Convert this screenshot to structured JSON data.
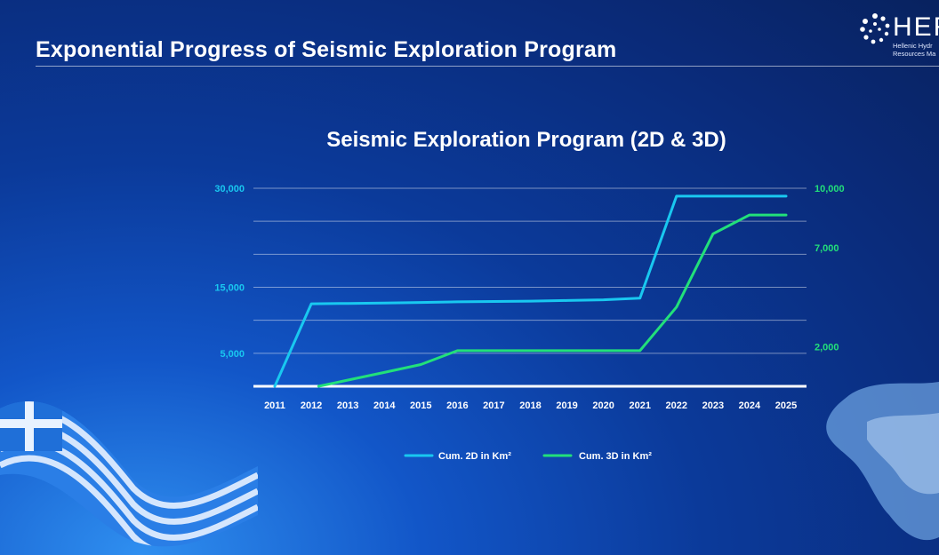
{
  "slide": {
    "title": "Exponential Progress of Seismic Exploration Program"
  },
  "logo": {
    "text": "HER",
    "subtitle_line1": "Hellenic Hydr",
    "subtitle_line2": "Resources Ma"
  },
  "chart_data": {
    "type": "line",
    "title": "Seismic Exploration Program (2D & 3D)",
    "x": [
      "2011",
      "2012",
      "2013",
      "2014",
      "2015",
      "2016",
      "2017",
      "2018",
      "2019",
      "2020",
      "2021",
      "2022",
      "2023",
      "2024",
      "2025"
    ],
    "left_axis": {
      "ticks": [
        5000,
        15000,
        30000
      ],
      "tick_labels": [
        "5,000",
        "15,000",
        "30,000"
      ],
      "ylim": [
        0,
        30000
      ],
      "color": "#19c8f0"
    },
    "right_axis": {
      "ticks": [
        2000,
        7000,
        10000
      ],
      "tick_labels": [
        "2,000",
        "7,000",
        "10,000"
      ],
      "ylim": [
        0,
        10000
      ],
      "color": "#22e07a"
    },
    "series": [
      {
        "name": "Cum. 2D in Km²",
        "axis": "left",
        "color": "#19c8f0",
        "points": [
          [
            0,
            0
          ],
          [
            1,
            12500
          ],
          [
            2,
            12550
          ],
          [
            3,
            12600
          ],
          [
            4,
            12700
          ],
          [
            5,
            12800
          ],
          [
            6,
            12850
          ],
          [
            7,
            12900
          ],
          [
            8,
            13000
          ],
          [
            9,
            13100
          ],
          [
            10,
            13350
          ],
          [
            11,
            28800
          ],
          [
            12,
            28800
          ],
          [
            13,
            28800
          ],
          [
            14,
            28800
          ]
        ]
      },
      {
        "name": "Cum. 3D in Km²",
        "axis": "right",
        "color": "#22e07a",
        "points": [
          [
            1.2,
            0
          ],
          [
            3,
            700
          ],
          [
            4,
            1100
          ],
          [
            5,
            1800
          ],
          [
            6,
            1800
          ],
          [
            7,
            1800
          ],
          [
            8,
            1800
          ],
          [
            9,
            1800
          ],
          [
            10,
            1800
          ],
          [
            11,
            4000
          ],
          [
            12,
            7700
          ],
          [
            13,
            8650
          ],
          [
            14,
            8650
          ]
        ]
      }
    ],
    "legend_position": "bottom"
  },
  "colors": {
    "accent_2d": "#19c8f0",
    "accent_3d": "#22e07a"
  }
}
